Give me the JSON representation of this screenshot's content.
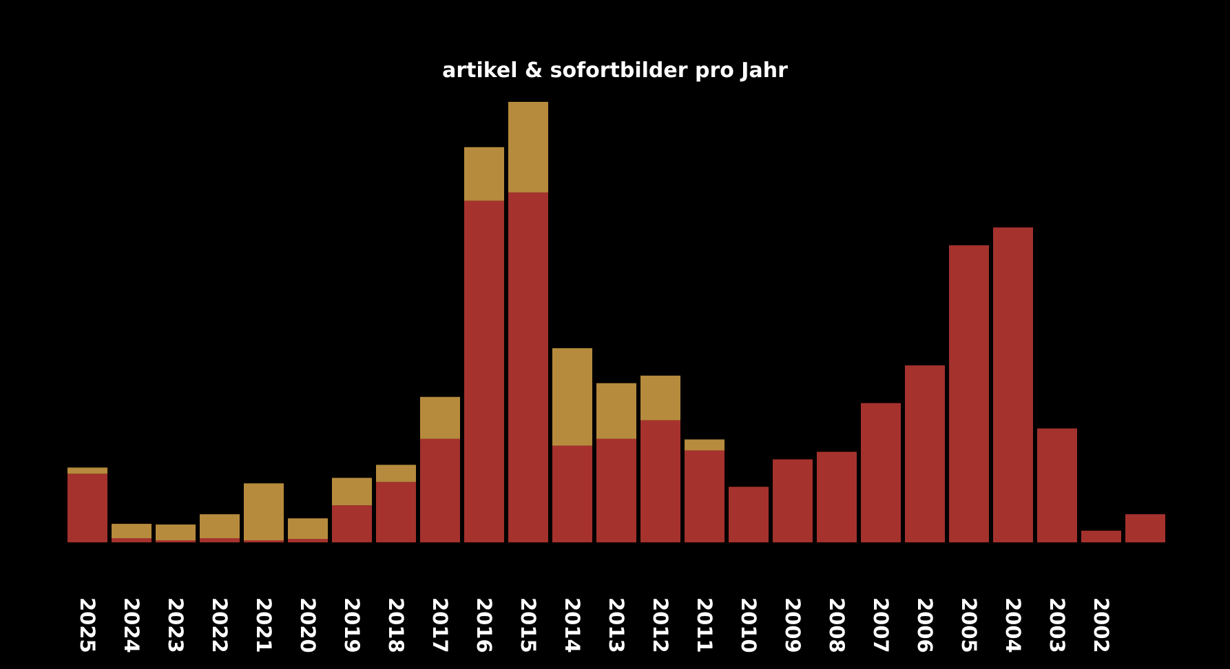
{
  "chart_data": {
    "type": "bar",
    "stacked": true,
    "title": "artikel & sofortbilder pro Jahr",
    "xlabel": "",
    "ylabel": "",
    "grid": false,
    "legend": "none",
    "ylim": [
      0,
      64
    ],
    "categories": [
      "2025",
      "2024",
      "2023",
      "2022",
      "2021",
      "2020",
      "2019",
      "2018",
      "2017",
      "2016",
      "2015",
      "2014",
      "2013",
      "2012",
      "2011",
      "2010",
      "2009",
      "2008",
      "2007",
      "2006",
      "2005",
      "2004",
      "2003",
      "2002",
      ""
    ],
    "series": [
      {
        "color": "#a5322d",
        "values": [
          10,
          0.6,
          0.3,
          0.6,
          0.3,
          0.5,
          5.4,
          8.8,
          15.1,
          49.8,
          51,
          14.1,
          15.1,
          17.8,
          13.4,
          8.1,
          12.1,
          13.2,
          20.3,
          25.8,
          43.3,
          45.9,
          16.6,
          1.7,
          4.1
        ]
      },
      {
        "color": "#b68b3d",
        "values": [
          0.9,
          2.1,
          2.3,
          3.5,
          8.3,
          3.0,
          4.0,
          2.5,
          6.1,
          7.8,
          13.2,
          14.2,
          8.1,
          6.5,
          1.6,
          0,
          0,
          0,
          0,
          0,
          0,
          0,
          0,
          0,
          0
        ]
      }
    ]
  }
}
